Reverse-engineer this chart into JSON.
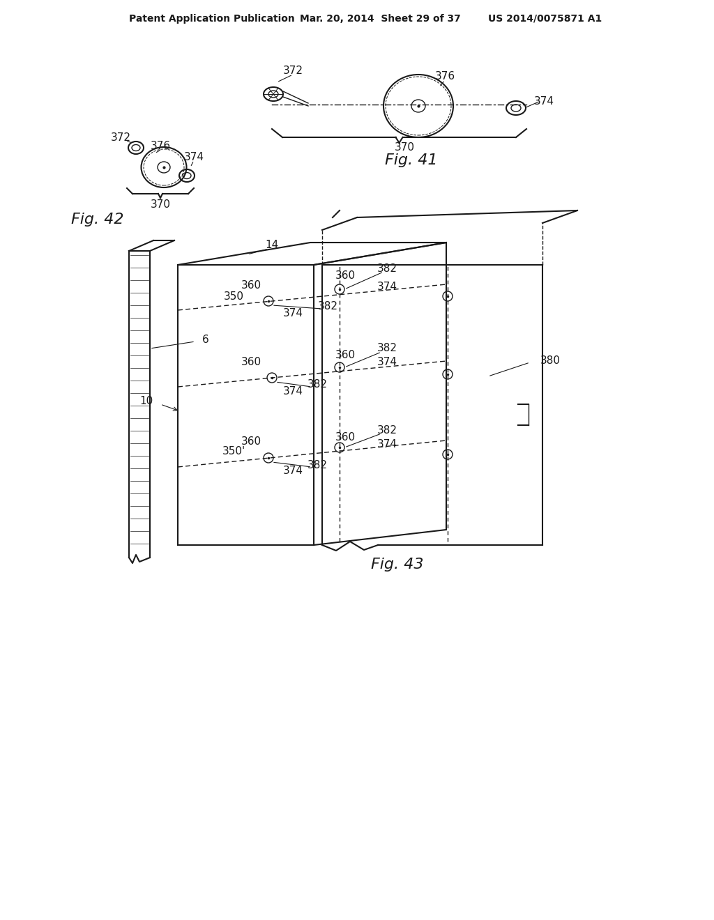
{
  "bg_color": "#ffffff",
  "header_left": "Patent Application Publication",
  "header_mid": "Mar. 20, 2014  Sheet 29 of 37",
  "header_right": "US 2014/0075871 A1",
  "fig41_label": "Fig. 41",
  "fig42_label": "Fig. 42",
  "fig43_label": "Fig. 43",
  "line_color": "#1a1a1a",
  "label_color": "#1a1a1a",
  "label_fontsize": 11,
  "fig_label_fontsize": 16,
  "header_fontsize": 10
}
